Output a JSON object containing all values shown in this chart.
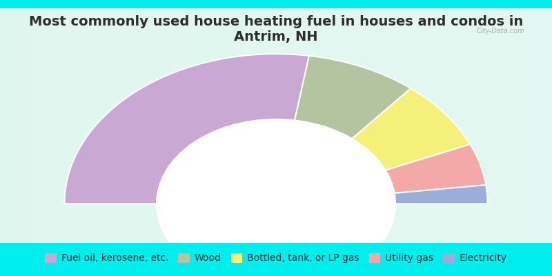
{
  "title": "Most commonly used house heating fuel in houses and condos in Antrim, NH",
  "segments": [
    {
      "label": "Fuel oil, kerosene, etc.",
      "value": 55.0,
      "color": "#C9A8D4"
    },
    {
      "label": "Wood",
      "value": 17.0,
      "color": "#B5C4A0"
    },
    {
      "label": "Bottled, tank, or LP gas",
      "value": 15.0,
      "color": "#F5F07A"
    },
    {
      "label": "Utility gas",
      "value": 9.0,
      "color": "#F5A8A8"
    },
    {
      "label": "Electricity",
      "value": 4.0,
      "color": "#9AADDB"
    }
  ],
  "background_color": "#00EEEE",
  "chart_bg_start": "#E8F5E8",
  "chart_bg_end": "#F5F5FF",
  "title_color": "#2D2D2D",
  "title_fontsize": 14,
  "legend_fontsize": 10
}
